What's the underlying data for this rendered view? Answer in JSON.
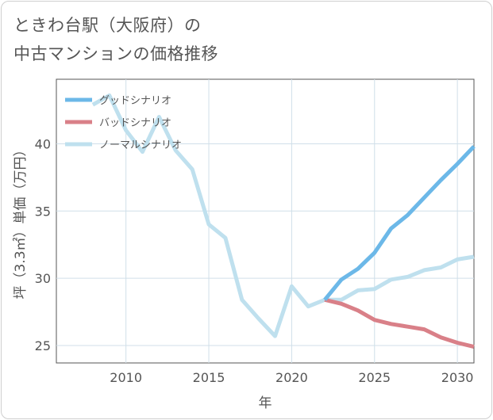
{
  "title_lines": [
    "ときわ台駅（大阪府）の",
    "中古マンションの価格推移"
  ],
  "chart_data": {
    "type": "line",
    "title": "ときわ台駅（大阪府）の中古マンションの価格推移",
    "xlabel": "年",
    "ylabel": "坪（3.3㎡）単価（万円）",
    "xlim": [
      2005.8,
      2031
    ],
    "ylim": [
      23.7,
      44.8
    ],
    "xticks": [
      2010,
      2015,
      2020,
      2025,
      2030
    ],
    "yticks": [
      25,
      30,
      35,
      40
    ],
    "legend_position": "top-left",
    "series": [
      {
        "name": "グッドシナリオ",
        "color": "#6cb8e8",
        "x": [
          2022,
          2023,
          2024,
          2025,
          2026,
          2027,
          2028,
          2029,
          2030,
          2031
        ],
        "y": [
          28.4,
          29.9,
          30.7,
          31.9,
          33.7,
          34.7,
          36.0,
          37.3,
          38.5,
          39.8
        ]
      },
      {
        "name": "バッドシナリオ",
        "color": "#d98088",
        "x": [
          2022,
          2023,
          2024,
          2025,
          2026,
          2027,
          2028,
          2029,
          2030,
          2031
        ],
        "y": [
          28.4,
          28.1,
          27.6,
          26.9,
          26.6,
          26.4,
          26.2,
          25.6,
          25.2,
          24.9
        ]
      },
      {
        "name": "ノーマルシナリオ",
        "color": "#bfe0ee",
        "x": [
          2008,
          2009,
          2010,
          2011,
          2012,
          2013,
          2014,
          2015,
          2016,
          2017,
          2018,
          2019,
          2020,
          2021,
          2022,
          2023,
          2024,
          2025,
          2026,
          2027,
          2028,
          2029,
          2030,
          2031
        ],
        "y": [
          42.9,
          43.6,
          41.0,
          39.4,
          42.0,
          39.5,
          38.1,
          34.0,
          33.0,
          28.4,
          27.0,
          25.7,
          29.4,
          27.9,
          28.4,
          28.4,
          29.1,
          29.2,
          29.9,
          30.1,
          30.6,
          30.8,
          31.4,
          31.6
        ]
      }
    ]
  }
}
